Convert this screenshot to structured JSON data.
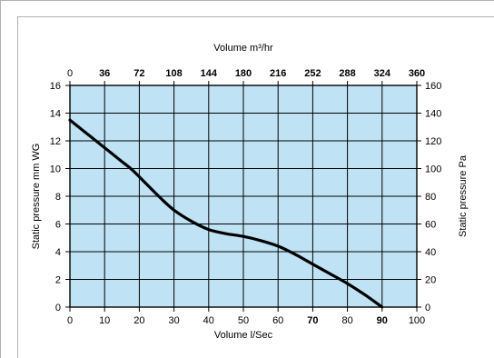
{
  "chart_data": {
    "type": "line",
    "x_bottom": {
      "label": "Volume l/Sec",
      "range": [
        0,
        100
      ],
      "ticks": [
        "0",
        "10",
        "20",
        "30",
        "40",
        "50",
        "60",
        "70",
        "80",
        "90",
        "100"
      ],
      "bold_ticks": [
        "70",
        "90"
      ]
    },
    "x_top": {
      "label": "Volume m³/hr",
      "range": [
        0,
        360
      ],
      "ticks": [
        "0",
        "36",
        "72",
        "108",
        "144",
        "180",
        "216",
        "252",
        "288",
        "324",
        "360"
      ],
      "bold_ticks": [
        "36",
        "72",
        "108",
        "144",
        "180",
        "216",
        "252",
        "288",
        "324",
        "360"
      ]
    },
    "y_left": {
      "label": "Static pressure mm WG",
      "range": [
        0,
        16
      ],
      "ticks": [
        "0",
        "2",
        "4",
        "6",
        "8",
        "10",
        "12",
        "14",
        "16"
      ]
    },
    "y_right": {
      "label": "Static pressure Pa",
      "range": [
        0,
        160
      ],
      "ticks": [
        "0",
        "20",
        "40",
        "60",
        "80",
        "100",
        "120",
        "140",
        "160"
      ]
    },
    "grid": true,
    "colors": {
      "plot_background": "#bfe3f5",
      "grid": "#000000",
      "curve": "#000000"
    },
    "series": [
      {
        "x": [
          0,
          5,
          10,
          15,
          18,
          22,
          26,
          30,
          35,
          40,
          45,
          50,
          55,
          60,
          65,
          70,
          75,
          80,
          85,
          90
        ],
        "y": [
          13.5,
          12.5,
          11.5,
          10.5,
          9.9,
          8.9,
          7.9,
          7.0,
          6.2,
          5.6,
          5.3,
          5.1,
          4.8,
          4.4,
          3.8,
          3.1,
          2.4,
          1.7,
          0.9,
          0.0
        ]
      }
    ]
  }
}
